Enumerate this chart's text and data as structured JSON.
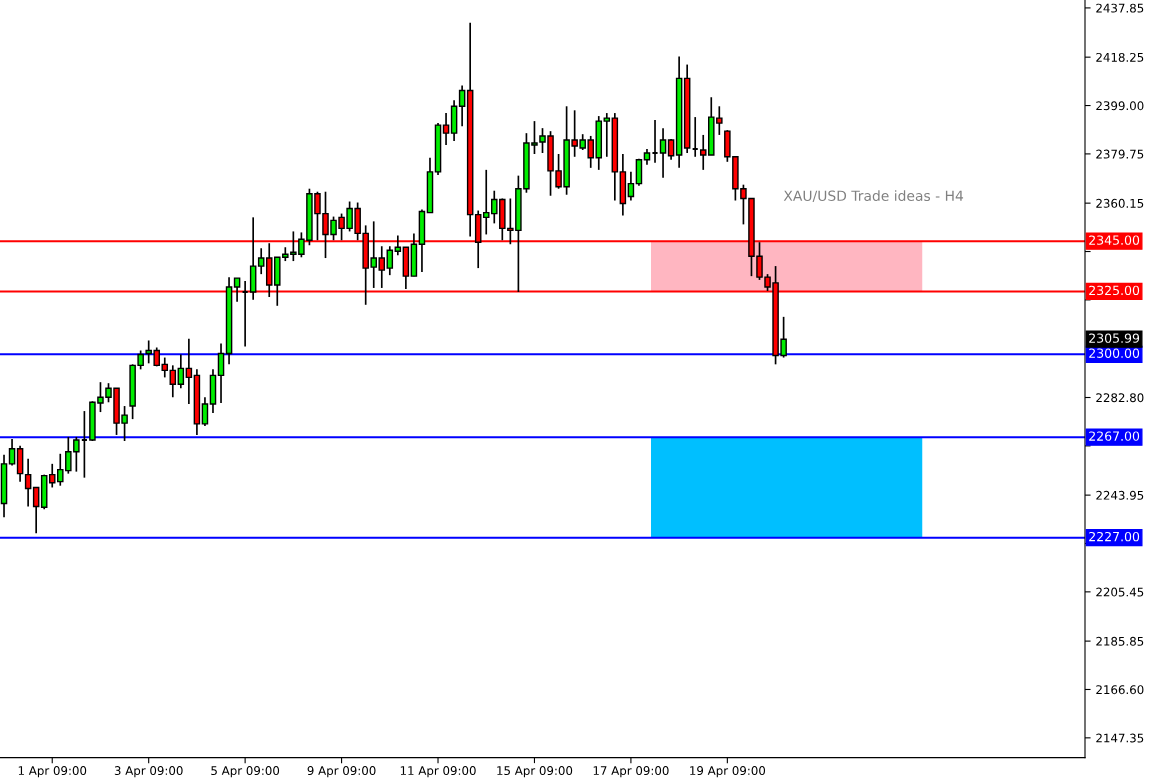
{
  "chart_data": {
    "type": "candlestick",
    "title": "XAU/USD Trade ideas - H4",
    "categories": [
      null,
      null,
      null,
      null,
      null,
      null,
      "1 Apr 09:00",
      null,
      null,
      null,
      null,
      null,
      null,
      null,
      null,
      null,
      null,
      null,
      "3 Apr 09:00",
      null,
      null,
      null,
      null,
      null,
      null,
      null,
      null,
      null,
      null,
      null,
      "5 Apr 09:00",
      null,
      null,
      null,
      null,
      null,
      null,
      null,
      null,
      null,
      null,
      null,
      "9 Apr 09:00",
      null,
      null,
      null,
      null,
      null,
      null,
      null,
      null,
      null,
      null,
      null,
      "11 Apr 09:00",
      null,
      null,
      null,
      null,
      null,
      null,
      null,
      null,
      null,
      null,
      null,
      "15 Apr 09:00",
      null,
      null,
      null,
      null,
      null,
      null,
      null,
      null,
      null,
      null,
      null,
      "17 Apr 09:00",
      null,
      null,
      null,
      null,
      null,
      null,
      null,
      null,
      null,
      null,
      null,
      "19 Apr 09:00",
      null,
      null,
      null,
      null,
      null,
      null,
      null,
      null,
      null,
      null,
      null,
      null,
      null,
      null,
      null,
      null,
      null,
      null,
      null,
      null,
      null,
      null,
      null,
      null,
      null,
      null,
      null,
      null,
      null,
      null,
      null,
      null,
      null,
      null,
      null,
      null,
      null,
      null,
      null,
      null,
      null,
      null,
      null,
      null
    ],
    "ohlc": [
      [
        2240.6,
        2260.0,
        2235.1,
        2256.4
      ],
      [
        2256.4,
        2266.3,
        2255.7,
        2262.4
      ],
      [
        2262.4,
        2263.6,
        2249.3,
        2252.5
      ],
      [
        2252.1,
        2258.4,
        2239.4,
        2246.6
      ],
      [
        2247.0,
        2247.0,
        2228.8,
        2239.4
      ],
      [
        2239.1,
        2252.1,
        2238.3,
        2251.7
      ],
      [
        2252.1,
        2256.4,
        2247.0,
        2248.9
      ],
      [
        2249.3,
        2260.4,
        2247.7,
        2254.1
      ],
      [
        2253.7,
        2267.1,
        2252.5,
        2261.2
      ],
      [
        2261.2,
        2267.1,
        2253.3,
        2265.9
      ],
      [
        2265.9,
        2277.4,
        2250.9,
        2265.9
      ],
      [
        2265.9,
        2281.3,
        2265.5,
        2280.9
      ],
      [
        2280.6,
        2288.9,
        2277.0,
        2282.9
      ],
      [
        2282.9,
        2288.5,
        2280.9,
        2286.5
      ],
      [
        2286.5,
        2286.5,
        2267.9,
        2272.6
      ],
      [
        2272.6,
        2279.4,
        2265.5,
        2275.8
      ],
      [
        2279.4,
        2296.0,
        2274.2,
        2295.6
      ],
      [
        2295.6,
        2301.5,
        2294.0,
        2299.9
      ],
      [
        2300.3,
        2305.5,
        2296.4,
        2301.5
      ],
      [
        2301.5,
        2302.7,
        2295.2,
        2295.6
      ],
      [
        2296.0,
        2298.7,
        2290.8,
        2293.6
      ],
      [
        2293.6,
        2295.6,
        2282.9,
        2288.1
      ],
      [
        2288.1,
        2299.9,
        2286.5,
        2294.4
      ],
      [
        2294.4,
        2306.2,
        2280.2,
        2290.8
      ],
      [
        2291.6,
        2294.0,
        2267.9,
        2272.3
      ],
      [
        2272.3,
        2282.9,
        2271.5,
        2280.2
      ],
      [
        2280.2,
        2294.0,
        2276.6,
        2291.6
      ],
      [
        2291.6,
        2304.3,
        2280.6,
        2300.3
      ],
      [
        2300.3,
        2330.7,
        2296.0,
        2326.8
      ],
      [
        2326.8,
        2330.3,
        2320.9,
        2330.3
      ],
      [
        2324.8,
        2329.2,
        2303.1,
        2324.8
      ],
      [
        2324.8,
        2354.5,
        2321.7,
        2335.1
      ],
      [
        2335.1,
        2342.2,
        2331.9,
        2338.3
      ],
      [
        2338.3,
        2344.2,
        2322.8,
        2327.6
      ],
      [
        2327.6,
        2338.6,
        2319.3,
        2338.6
      ],
      [
        2338.6,
        2342.6,
        2337.1,
        2339.8
      ],
      [
        2339.8,
        2348.9,
        2337.1,
        2340.6
      ],
      [
        2339.8,
        2348.5,
        2338.6,
        2345.8
      ],
      [
        2345.4,
        2365.9,
        2343.4,
        2363.9
      ],
      [
        2363.9,
        2364.7,
        2345.4,
        2356.0
      ],
      [
        2356.0,
        2364.7,
        2338.3,
        2347.7
      ],
      [
        2347.7,
        2354.8,
        2345.4,
        2353.3
      ],
      [
        2354.5,
        2356.0,
        2345.4,
        2350.1
      ],
      [
        2350.1,
        2360.8,
        2348.9,
        2358.0
      ],
      [
        2358.0,
        2360.4,
        2345.4,
        2348.1
      ],
      [
        2348.1,
        2351.3,
        2319.7,
        2334.3
      ],
      [
        2334.7,
        2352.9,
        2326.4,
        2338.3
      ],
      [
        2338.3,
        2343.0,
        2326.4,
        2333.5
      ],
      [
        2334.3,
        2343.0,
        2331.5,
        2341.4
      ],
      [
        2341.0,
        2347.3,
        2339.4,
        2342.6
      ],
      [
        2342.6,
        2342.6,
        2326.0,
        2331.1
      ],
      [
        2331.1,
        2348.1,
        2331.1,
        2343.8
      ],
      [
        2343.8,
        2357.6,
        2332.7,
        2356.8
      ],
      [
        2356.4,
        2378.2,
        2356.4,
        2372.6
      ],
      [
        2372.6,
        2392.0,
        2371.4,
        2391.2
      ],
      [
        2391.2,
        2396.0,
        2383.3,
        2388.0
      ],
      [
        2388.0,
        2401.1,
        2384.9,
        2398.7
      ],
      [
        2398.7,
        2407.0,
        2390.8,
        2405.0
      ],
      [
        2405.0,
        2431.9,
        2346.9,
        2355.6
      ],
      [
        2355.6,
        2357.2,
        2334.3,
        2344.6
      ],
      [
        2354.5,
        2373.4,
        2347.7,
        2356.4
      ],
      [
        2356.0,
        2365.1,
        2352.1,
        2361.6
      ],
      [
        2361.6,
        2362.0,
        2345.4,
        2350.1
      ],
      [
        2350.1,
        2362.0,
        2343.8,
        2349.3
      ],
      [
        2349.3,
        2371.1,
        2324.8,
        2365.9
      ],
      [
        2365.9,
        2388.0,
        2364.3,
        2384.1
      ],
      [
        2383.3,
        2392.8,
        2379.7,
        2384.1
      ],
      [
        2384.5,
        2390.0,
        2380.1,
        2386.9
      ],
      [
        2386.9,
        2388.8,
        2363.1,
        2373.0
      ],
      [
        2373.0,
        2379.7,
        2365.9,
        2366.7
      ],
      [
        2366.7,
        2398.7,
        2363.5,
        2385.3
      ],
      [
        2385.3,
        2397.1,
        2378.6,
        2382.9
      ],
      [
        2382.1,
        2387.6,
        2381.3,
        2385.3
      ],
      [
        2385.3,
        2386.9,
        2374.2,
        2378.2
      ],
      [
        2378.2,
        2394.8,
        2373.4,
        2392.8
      ],
      [
        2392.8,
        2396.0,
        2378.6,
        2394.0
      ],
      [
        2394.0,
        2396.0,
        2361.2,
        2372.6
      ],
      [
        2372.6,
        2379.7,
        2355.2,
        2360.0
      ],
      [
        2362.8,
        2372.6,
        2361.2,
        2367.9
      ],
      [
        2367.9,
        2377.8,
        2367.1,
        2377.4
      ],
      [
        2377.4,
        2381.7,
        2375.4,
        2380.1
      ],
      [
        2380.1,
        2393.2,
        2376.2,
        2380.1
      ],
      [
        2380.1,
        2390.0,
        2370.3,
        2385.3
      ],
      [
        2385.3,
        2385.7,
        2377.4,
        2379.0
      ],
      [
        2379.3,
        2418.5,
        2374.2,
        2409.8
      ],
      [
        2409.8,
        2415.3,
        2380.1,
        2382.1
      ],
      [
        2381.7,
        2394.4,
        2378.6,
        2381.7
      ],
      [
        2381.3,
        2387.3,
        2373.4,
        2379.3
      ],
      [
        2379.3,
        2402.3,
        2379.3,
        2394.4
      ],
      [
        2394.0,
        2398.7,
        2387.3,
        2392.0
      ],
      [
        2388.8,
        2389.2,
        2376.6,
        2378.6
      ],
      [
        2378.6,
        2378.6,
        2361.2,
        2365.9
      ],
      [
        2365.9,
        2367.5,
        2351.7,
        2362.0
      ],
      [
        2362.0,
        2362.0,
        2331.1,
        2339.0
      ],
      [
        2339.0,
        2344.6,
        2329.6,
        2330.7
      ],
      [
        2330.7,
        2331.9,
        2325.2,
        2326.8
      ],
      [
        2328.4,
        2335.1,
        2296.0,
        2299.5
      ],
      [
        2299.5,
        2314.9,
        2298.7,
        2305.99
      ],
      null,
      null,
      null,
      null,
      null,
      null,
      null,
      null,
      null,
      null,
      null,
      null,
      null,
      null,
      null,
      null,
      null,
      null,
      null,
      null,
      null,
      null,
      null,
      null,
      null,
      null,
      null,
      null,
      null,
      null,
      null,
      null,
      null,
      null,
      null,
      null,
      null
    ],
    "ylim": [
      2139.5,
      2441.0
    ],
    "yticks": [
      {
        "value": 2437.85,
        "label": "2437.85"
      },
      {
        "value": 2418.25,
        "label": "2418.25"
      },
      {
        "value": 2399.0,
        "label": "2399.00"
      },
      {
        "value": 2379.75,
        "label": "2379.75"
      },
      {
        "value": 2360.15,
        "label": "2360.15"
      },
      {
        "value": 2340.9,
        "label": null
      },
      {
        "value": 2321.65,
        "label": null
      },
      {
        "value": 2282.8,
        "label": "2282.80"
      },
      {
        "value": 2263.55,
        "label": null
      },
      {
        "value": 2243.95,
        "label": "2243.95"
      },
      {
        "value": 2224.7,
        "label": null
      },
      {
        "value": 2205.45,
        "label": "2205.45"
      },
      {
        "value": 2185.85,
        "label": "2185.85"
      },
      {
        "value": 2166.6,
        "label": "2166.60"
      },
      {
        "value": 2147.35,
        "label": "2147.35"
      }
    ],
    "ref_lines": [
      {
        "axis": "y",
        "value": 2345,
        "label": "2345.00",
        "color": "#ff0000"
      },
      {
        "axis": "y",
        "value": 2325,
        "label": "2325.00",
        "color": "#ff0000"
      },
      {
        "axis": "y",
        "value": 2300,
        "label": "2300.00",
        "color": "#0000ff"
      },
      {
        "axis": "y",
        "value": 2267,
        "label": "2267.00",
        "color": "#0000ff"
      },
      {
        "axis": "y",
        "value": 2227,
        "label": "2227.00",
        "color": "#0000ff"
      }
    ],
    "bands": [
      {
        "axis": "y",
        "from": 2325,
        "to": 2345,
        "color": "#ffb6c1"
      },
      {
        "axis": "y",
        "from": 2227,
        "to": 2267,
        "color": "#00bfff"
      }
    ],
    "annotations": [
      "2305.99"
    ],
    "grid": false,
    "legend": false
  }
}
